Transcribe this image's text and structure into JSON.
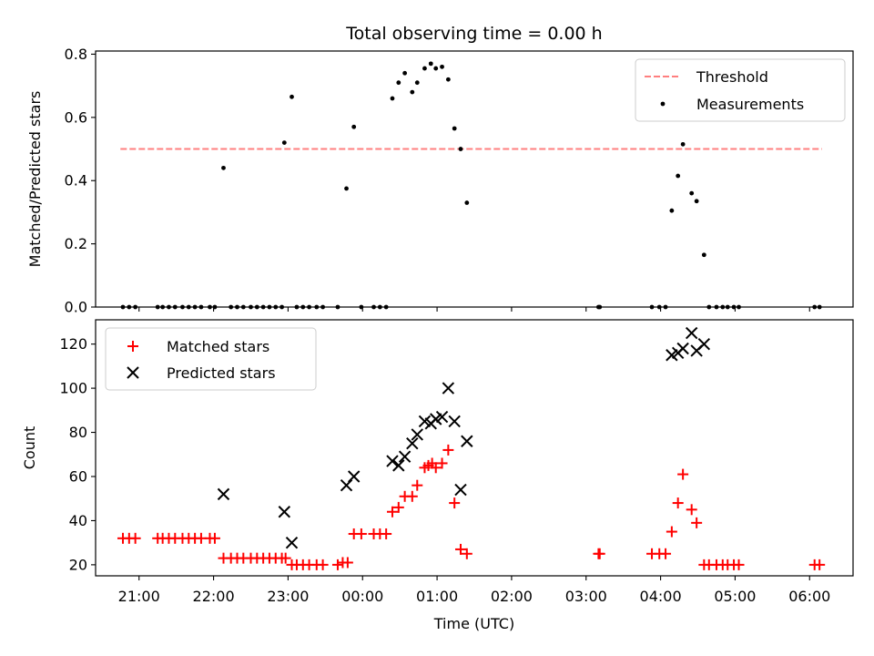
{
  "chart_data": [
    {
      "type": "scatter",
      "title": "Total observing time = 0.00 h",
      "xlabel": "",
      "ylabel": "Matched/Predicted stars",
      "ylim": [
        0,
        0.81
      ],
      "yticks": [
        0.0,
        0.2,
        0.4,
        0.6,
        0.8
      ],
      "ytick_labels": [
        "0.0",
        "0.2",
        "0.4",
        "0.6",
        "0.8"
      ],
      "legend": {
        "placement": "top-right",
        "entries": [
          "Threshold",
          "Measurements"
        ]
      },
      "threshold": {
        "name": "Threshold",
        "value": 0.5,
        "x_range": [
          "20:45",
          "06:10"
        ],
        "color": "#ff7f7f"
      },
      "series": [
        {
          "name": "Measurements",
          "marker": "dot",
          "color": "#000000",
          "points": [
            [
              "20:47",
              0
            ],
            [
              "20:52",
              0
            ],
            [
              "20:57",
              0
            ],
            [
              "21:15",
              0
            ],
            [
              "21:19",
              0
            ],
            [
              "21:24",
              0
            ],
            [
              "21:29",
              0
            ],
            [
              "21:35",
              0
            ],
            [
              "21:40",
              0
            ],
            [
              "21:45",
              0
            ],
            [
              "21:50",
              0
            ],
            [
              "21:57",
              0
            ],
            [
              "22:01",
              0
            ],
            [
              "22:08",
              0.44
            ],
            [
              "22:14",
              0
            ],
            [
              "22:19",
              0
            ],
            [
              "22:24",
              0
            ],
            [
              "22:30",
              0
            ],
            [
              "22:35",
              0
            ],
            [
              "22:40",
              0
            ],
            [
              "22:45",
              0
            ],
            [
              "22:50",
              0
            ],
            [
              "22:55",
              0
            ],
            [
              "22:57",
              0.52
            ],
            [
              "23:03",
              0.665
            ],
            [
              "23:07",
              0
            ],
            [
              "23:12",
              0
            ],
            [
              "23:17",
              0
            ],
            [
              "23:23",
              0
            ],
            [
              "23:28",
              0
            ],
            [
              "23:40",
              0
            ],
            [
              "23:47",
              0.375
            ],
            [
              "23:53",
              0.57
            ],
            [
              "23:59",
              0
            ],
            [
              "00:09",
              0
            ],
            [
              "00:14",
              0
            ],
            [
              "00:19",
              0
            ],
            [
              "00:24",
              0.66
            ],
            [
              "00:29",
              0.71
            ],
            [
              "00:34",
              0.74
            ],
            [
              "00:40",
              0.68
            ],
            [
              "00:44",
              0.71
            ],
            [
              "00:50",
              0.755
            ],
            [
              "00:55",
              0.77
            ],
            [
              "00:59",
              0.755
            ],
            [
              "01:04",
              0.76
            ],
            [
              "01:09",
              0.72
            ],
            [
              "01:14",
              0.565
            ],
            [
              "01:19",
              0.5
            ],
            [
              "01:24",
              0.33
            ],
            [
              "03:10",
              0
            ],
            [
              "03:11",
              0
            ],
            [
              "03:53",
              0
            ],
            [
              "03:59",
              0
            ],
            [
              "04:04",
              0
            ],
            [
              "04:09",
              0.305
            ],
            [
              "04:14",
              0.415
            ],
            [
              "04:18",
              0.515
            ],
            [
              "04:25",
              0.36
            ],
            [
              "04:29",
              0.335
            ],
            [
              "04:35",
              0.165
            ],
            [
              "04:39",
              0
            ],
            [
              "04:45",
              0
            ],
            [
              "04:50",
              0
            ],
            [
              "04:54",
              0
            ],
            [
              "04:59",
              0
            ],
            [
              "05:03",
              0
            ],
            [
              "06:04",
              0
            ],
            [
              "06:08",
              0
            ]
          ]
        }
      ]
    },
    {
      "type": "scatter",
      "title": "",
      "xlabel": "Time (UTC)",
      "ylabel": "Count",
      "ylim": [
        15,
        131
      ],
      "yticks": [
        20,
        40,
        60,
        80,
        100,
        120
      ],
      "ytick_labels": [
        "20",
        "40",
        "60",
        "80",
        "100",
        "120"
      ],
      "x_tick_labels": [
        "21:00",
        "22:00",
        "23:00",
        "00:00",
        "01:00",
        "02:00",
        "03:00",
        "04:00",
        "05:00",
        "06:00"
      ],
      "xlim": [
        "20:25",
        "06:35"
      ],
      "legend": {
        "placement": "top-left",
        "entries": [
          "Matched stars",
          "Predicted stars"
        ]
      },
      "series": [
        {
          "name": "Matched stars",
          "marker": "plus",
          "color": "#ff0000",
          "points": [
            [
              "20:47",
              32
            ],
            [
              "20:52",
              32
            ],
            [
              "20:57",
              32
            ],
            [
              "21:15",
              32
            ],
            [
              "21:19",
              32
            ],
            [
              "21:24",
              32
            ],
            [
              "21:29",
              32
            ],
            [
              "21:35",
              32
            ],
            [
              "21:40",
              32
            ],
            [
              "21:45",
              32
            ],
            [
              "21:50",
              32
            ],
            [
              "21:57",
              32
            ],
            [
              "22:01",
              32
            ],
            [
              "22:08",
              23
            ],
            [
              "22:14",
              23
            ],
            [
              "22:19",
              23
            ],
            [
              "22:24",
              23
            ],
            [
              "22:30",
              23
            ],
            [
              "22:35",
              23
            ],
            [
              "22:40",
              23
            ],
            [
              "22:45",
              23
            ],
            [
              "22:50",
              23
            ],
            [
              "22:55",
              23
            ],
            [
              "22:58",
              23
            ],
            [
              "23:03",
              20
            ],
            [
              "23:07",
              20
            ],
            [
              "23:12",
              20
            ],
            [
              "23:17",
              20
            ],
            [
              "23:23",
              20
            ],
            [
              "23:28",
              20
            ],
            [
              "23:40",
              20
            ],
            [
              "23:44",
              21
            ],
            [
              "23:48",
              21
            ],
            [
              "23:53",
              34
            ],
            [
              "23:59",
              34
            ],
            [
              "00:09",
              34
            ],
            [
              "00:14",
              34
            ],
            [
              "00:19",
              34
            ],
            [
              "00:24",
              44
            ],
            [
              "00:29",
              46
            ],
            [
              "00:34",
              51
            ],
            [
              "00:40",
              51
            ],
            [
              "00:44",
              56
            ],
            [
              "00:50",
              64
            ],
            [
              "00:53",
              65
            ],
            [
              "00:56",
              66
            ],
            [
              "00:59",
              64
            ],
            [
              "01:04",
              66
            ],
            [
              "01:09",
              72
            ],
            [
              "01:14",
              48
            ],
            [
              "01:19",
              27
            ],
            [
              "01:24",
              25
            ],
            [
              "03:10",
              25
            ],
            [
              "03:11",
              25
            ],
            [
              "03:53",
              25
            ],
            [
              "03:59",
              25
            ],
            [
              "04:04",
              25
            ],
            [
              "04:09",
              35
            ],
            [
              "04:14",
              48
            ],
            [
              "04:18",
              61
            ],
            [
              "04:25",
              45
            ],
            [
              "04:29",
              39
            ],
            [
              "04:35",
              20
            ],
            [
              "04:39",
              20
            ],
            [
              "04:45",
              20
            ],
            [
              "04:50",
              20
            ],
            [
              "04:54",
              20
            ],
            [
              "04:59",
              20
            ],
            [
              "05:03",
              20
            ],
            [
              "06:04",
              20
            ],
            [
              "06:08",
              20
            ]
          ]
        },
        {
          "name": "Predicted stars",
          "marker": "x",
          "color": "#000000",
          "points": [
            [
              "22:08",
              52
            ],
            [
              "22:57",
              44
            ],
            [
              "23:03",
              30
            ],
            [
              "23:47",
              56
            ],
            [
              "23:53",
              60
            ],
            [
              "00:24",
              67
            ],
            [
              "00:29",
              65
            ],
            [
              "00:34",
              69
            ],
            [
              "00:40",
              75
            ],
            [
              "00:44",
              79
            ],
            [
              "00:50",
              85
            ],
            [
              "00:55",
              84
            ],
            [
              "00:59",
              86
            ],
            [
              "01:04",
              87
            ],
            [
              "01:09",
              100
            ],
            [
              "01:14",
              85
            ],
            [
              "01:19",
              54
            ],
            [
              "01:24",
              76
            ],
            [
              "04:09",
              115
            ],
            [
              "04:14",
              116
            ],
            [
              "04:18",
              118
            ],
            [
              "04:25",
              125
            ],
            [
              "04:29",
              117
            ],
            [
              "04:35",
              120
            ]
          ]
        }
      ]
    }
  ]
}
